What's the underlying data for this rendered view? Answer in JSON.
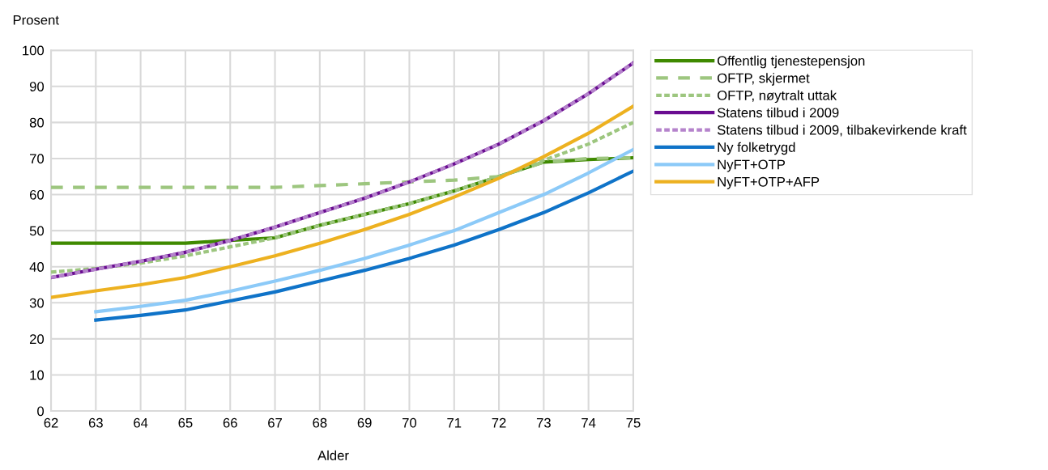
{
  "chart_data": {
    "type": "line",
    "ylabel": "Prosent",
    "xlabel": "Alder",
    "x": [
      62,
      63,
      64,
      65,
      66,
      67,
      68,
      69,
      70,
      71,
      72,
      73,
      74,
      75
    ],
    "xlim": [
      62,
      75
    ],
    "xticks": [
      62,
      63,
      64,
      65,
      66,
      67,
      68,
      69,
      70,
      71,
      72,
      73,
      74,
      75
    ],
    "ylim": [
      0,
      100
    ],
    "yticks": [
      0,
      10,
      20,
      30,
      40,
      50,
      60,
      70,
      80,
      90,
      100
    ],
    "grid": true,
    "legend": "right",
    "marker": "none",
    "series": [
      {
        "name": "Offentlig tjenestepensjon",
        "color": "#3f8a00",
        "line_style": "solid",
        "values": [
          46.5,
          46.5,
          46.5,
          46.5,
          47.3,
          48,
          51.5,
          54.5,
          57.5,
          61,
          65,
          69,
          69.7,
          70.2
        ]
      },
      {
        "name": "OFTP, skjermet",
        "color": "#9dc67f",
        "line_style": "dashed",
        "values": [
          62,
          62,
          62,
          62,
          62,
          62,
          62.5,
          63,
          63.5,
          64,
          65,
          69,
          70,
          70.2
        ]
      },
      {
        "name": "OFTP, nøytralt uttak",
        "color": "#9dc67f",
        "line_style": "dotted",
        "values": [
          38.5,
          39.5,
          41,
          43,
          45.5,
          48,
          51.5,
          54.5,
          57.5,
          61,
          65,
          69.5,
          74,
          80
        ]
      },
      {
        "name": "Statens tilbud i 2009",
        "color": "#6a0d91",
        "line_style": "solid",
        "values": [
          37,
          39.3,
          41.5,
          44,
          47.3,
          51,
          55,
          59,
          63.5,
          68.5,
          74,
          80.5,
          88,
          96.5
        ]
      },
      {
        "name": "Statens tilbud i 2009, tilbakevirkende kraft",
        "color": "#b583cc",
        "line_style": "dotted",
        "values": [
          37,
          39.3,
          41.5,
          44,
          47.3,
          51,
          55,
          59,
          63.5,
          68.5,
          74,
          80.5,
          88,
          96.5
        ]
      },
      {
        "name": "Ny folketrygd",
        "color": "#0f73c8",
        "line_style": "solid",
        "values": [
          null,
          25.2,
          26.5,
          28,
          30.5,
          33,
          36,
          39,
          42.3,
          46,
          50.3,
          55,
          60.5,
          66.5
        ]
      },
      {
        "name": "NyFT+OTP",
        "color": "#8ccaf8",
        "line_style": "solid",
        "values": [
          null,
          27.5,
          29,
          30.7,
          33.2,
          36,
          39,
          42.3,
          46,
          50,
          55,
          60,
          66,
          72.5
        ]
      },
      {
        "name": "NyFT+OTP+AFP",
        "color": "#edb120",
        "line_style": "solid",
        "values": [
          31.5,
          33.3,
          35,
          37,
          40,
          43,
          46.5,
          50.3,
          54.5,
          59.3,
          64.5,
          70.5,
          77,
          84.5
        ]
      }
    ]
  }
}
